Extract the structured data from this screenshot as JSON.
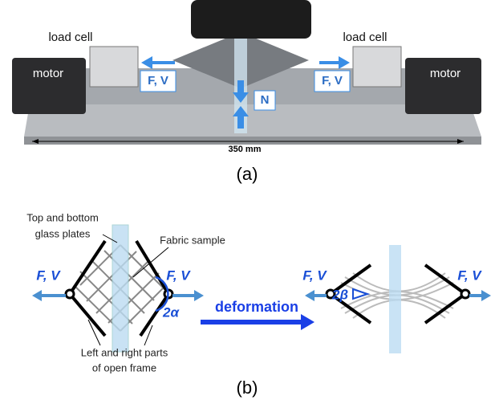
{
  "photo": {
    "load_cell_left": "load cell",
    "load_cell_right": "load cell",
    "motor_left": "motor",
    "motor_right": "motor",
    "force_left": "F, V",
    "force_right": "F, V",
    "normal": "N",
    "dimension": "350 mm",
    "caption": "(a)"
  },
  "diagram": {
    "glass_label": [
      "Top and bottom",
      "glass plates"
    ],
    "fabric_label": "Fabric sample",
    "frame_label": [
      "Left and right parts",
      "of open frame"
    ],
    "force_labels": [
      "F, V",
      "F, V",
      "F, V",
      "F, V"
    ],
    "alpha": "2α",
    "beta": "2β",
    "arrow_label": "deformation",
    "caption": "(b)"
  }
}
